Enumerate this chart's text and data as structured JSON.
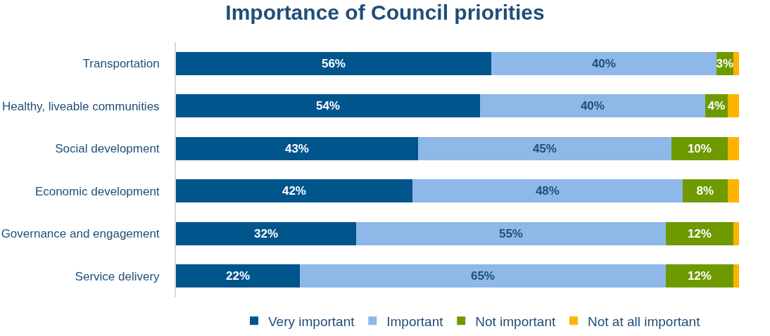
{
  "chart_data": {
    "type": "bar",
    "orientation": "horizontal",
    "stacked": true,
    "title": "Importance of Council priorities",
    "categories": [
      "Transportation",
      "Healthy, liveable communities",
      "Social development",
      "Economic development",
      "Governance and engagement",
      "Service delivery"
    ],
    "series": [
      {
        "name": "Very important",
        "color": "#00558c",
        "values": [
          56,
          54,
          43,
          42,
          32,
          22
        ],
        "value_labels": [
          "56%",
          "54%",
          "43%",
          "42%",
          "32%",
          "22%"
        ]
      },
      {
        "name": "Important",
        "color": "#8db8e8",
        "values": [
          40,
          40,
          45,
          48,
          55,
          65
        ],
        "value_labels": [
          "40%",
          "40%",
          "45%",
          "48%",
          "55%",
          "65%"
        ]
      },
      {
        "name": "Not important",
        "color": "#6e9a00",
        "values": [
          3,
          4,
          10,
          8,
          12,
          12
        ],
        "value_labels": [
          "3%",
          "4%",
          "10%",
          "8%",
          "12%",
          "12%"
        ]
      },
      {
        "name": "Not at all important",
        "color": "#ffb300",
        "values": [
          1,
          2,
          2,
          2,
          1,
          1
        ],
        "value_labels": [
          null,
          null,
          null,
          null,
          null,
          null
        ]
      }
    ],
    "legend": "bottom"
  }
}
